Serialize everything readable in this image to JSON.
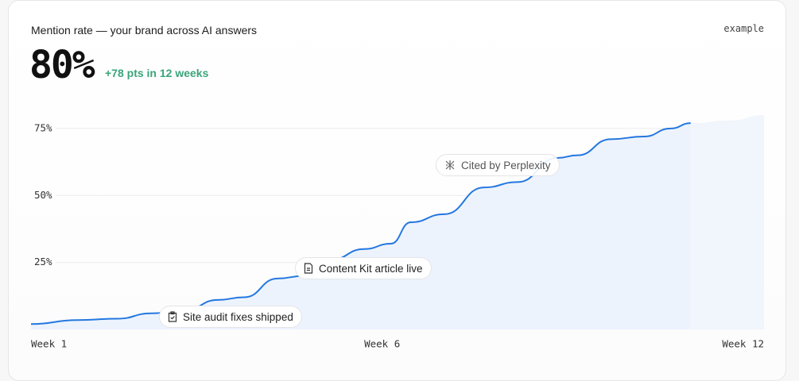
{
  "chart_data": {
    "type": "line",
    "title": "Mention rate — your brand across AI answers",
    "headline": "80%",
    "delta": "+78 pts in 12 weeks",
    "badge": "example",
    "xlim": [
      1,
      12
    ],
    "ylim": [
      0,
      80
    ],
    "xticks": [
      {
        "value": 1,
        "label": "Week 1"
      },
      {
        "value": 6,
        "label": "Week 6"
      },
      {
        "value": 12,
        "label": "Week 12"
      }
    ],
    "yticks": [
      {
        "value": 25,
        "label": "25%"
      },
      {
        "value": 50,
        "label": "50%"
      },
      {
        "value": 75,
        "label": "75%"
      }
    ],
    "grid": true,
    "series": [
      {
        "color": "#2377e0",
        "fill": "#edf3fd",
        "x": [
          1.0,
          1.7,
          2.3,
          2.8,
          3.3,
          3.8,
          4.2,
          4.7,
          5.1,
          5.5,
          6.0,
          6.4,
          6.7,
          7.2,
          7.8,
          8.3,
          8.9,
          9.2,
          9.7,
          10.2,
          10.6,
          10.9
        ],
        "values": [
          2,
          3.5,
          4,
          6,
          7,
          11,
          12,
          19,
          20,
          26,
          30,
          32,
          40,
          43,
          53,
          55,
          64,
          65,
          71,
          72,
          75,
          77
        ]
      },
      {
        "color": null,
        "fill": "#f1f5fc",
        "x": [
          10.9,
          11.5,
          12.0
        ],
        "values": [
          77,
          78,
          80
        ]
      }
    ],
    "annotations": [
      "Cited by Perplexity",
      "Content Kit article live",
      "Site audit fixes shipped"
    ]
  }
}
